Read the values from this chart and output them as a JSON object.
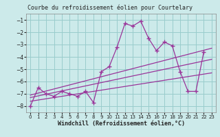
{
  "title": "Courbe du refroidissement éolien pour Courtelary",
  "xlabel": "Windchill (Refroidissement éolien,°C)",
  "bg_color": "#cceaea",
  "grid_color": "#99cccc",
  "line_color": "#993399",
  "xlim": [
    -0.5,
    23.5
  ],
  "ylim": [
    -8.5,
    -0.5
  ],
  "yticks": [
    -8,
    -7,
    -6,
    -5,
    -4,
    -3,
    -2,
    -1
  ],
  "xticks": [
    0,
    1,
    2,
    3,
    4,
    5,
    6,
    7,
    8,
    9,
    10,
    11,
    12,
    13,
    14,
    15,
    16,
    17,
    18,
    19,
    20,
    21,
    22,
    23
  ],
  "series": [
    [
      0,
      -8.0
    ],
    [
      1,
      -6.5
    ],
    [
      2,
      -7.0
    ],
    [
      3,
      -7.2
    ],
    [
      4,
      -6.8
    ],
    [
      5,
      -7.0
    ],
    [
      6,
      -7.2
    ],
    [
      7,
      -6.8
    ],
    [
      8,
      -7.7
    ],
    [
      9,
      -5.2
    ],
    [
      10,
      -4.8
    ],
    [
      11,
      -3.2
    ],
    [
      12,
      -1.3
    ],
    [
      13,
      -1.5
    ],
    [
      14,
      -1.1
    ],
    [
      15,
      -2.5
    ],
    [
      16,
      -3.5
    ],
    [
      17,
      -2.8
    ],
    [
      18,
      -3.1
    ],
    [
      19,
      -5.2
    ],
    [
      20,
      -6.8
    ],
    [
      21,
      -6.8
    ],
    [
      22,
      -3.6
    ]
  ],
  "trend_lines": [
    [
      [
        0,
        -7.1
      ],
      [
        23,
        -3.3
      ]
    ],
    [
      [
        0,
        -7.3
      ],
      [
        23,
        -4.2
      ]
    ],
    [
      [
        0,
        -7.6
      ],
      [
        23,
        -5.3
      ]
    ]
  ],
  "title_fontsize": 6,
  "xlabel_fontsize": 6,
  "tick_fontsize": 5
}
